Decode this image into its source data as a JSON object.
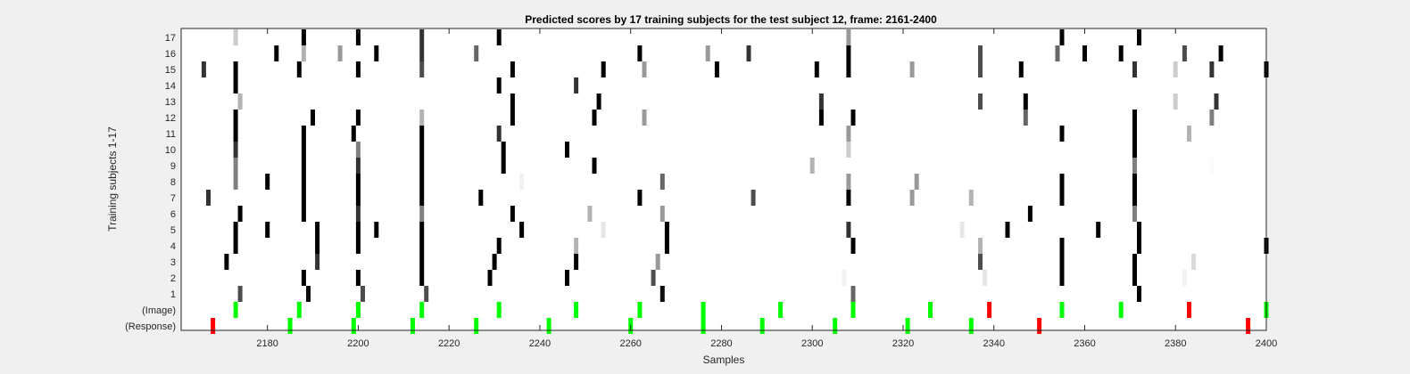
{
  "chart_data": {
    "type": "heatmap",
    "title": "Predicted scores by 17 training subjects for the test subject 12, frame: 2161-2400",
    "xlabel": "Samples",
    "ylabel": "Training subjects 1-17",
    "xlim": [
      2161,
      2400
    ],
    "x_ticks": [
      "2180",
      "2200",
      "2220",
      "2240",
      "2260",
      "2280",
      "2300",
      "2320",
      "2340",
      "2360",
      "2380",
      "2400"
    ],
    "y_ticks": [
      "1",
      "2",
      "3",
      "4",
      "5",
      "6",
      "7",
      "8",
      "9",
      "10",
      "11",
      "12",
      "13",
      "14",
      "15",
      "16",
      "(Image)",
      "(Response)"
    ],
    "grid": false,
    "colormap": "gray (white = 0, black = 1)",
    "colors": {
      "green": "#00ff00",
      "red": "#ff0000",
      "background": "#f0f0f0"
    },
    "rows": [
      {
        "label": "1",
        "cells": [
          [
            2174,
            0.7
          ],
          [
            2189,
            0.95
          ],
          [
            2201,
            0.7
          ],
          [
            2215,
            0.7
          ],
          [
            2267,
            0.95
          ],
          [
            2309,
            0.6
          ],
          [
            2372,
            1
          ]
        ]
      },
      {
        "label": "2",
        "cells": [
          [
            2188,
            1
          ],
          [
            2200,
            1
          ],
          [
            2214,
            1
          ],
          [
            2229,
            1
          ],
          [
            2246,
            1
          ],
          [
            2265,
            0.7
          ],
          [
            2307,
            0.05
          ],
          [
            2338,
            0.1
          ],
          [
            2355,
            1
          ],
          [
            2371,
            1
          ],
          [
            2382,
            0.05
          ]
        ]
      },
      {
        "label": "3",
        "cells": [
          [
            2171,
            1
          ],
          [
            2191,
            0.8
          ],
          [
            2214,
            1
          ],
          [
            2230,
            1
          ],
          [
            2248,
            1
          ],
          [
            2266,
            0.4
          ],
          [
            2337,
            0.7
          ],
          [
            2355,
            1
          ],
          [
            2371,
            1
          ],
          [
            2384,
            0.15
          ]
        ]
      },
      {
        "label": "4",
        "cells": [
          [
            2173,
            1
          ],
          [
            2191,
            1
          ],
          [
            2200,
            1
          ],
          [
            2214,
            1
          ],
          [
            2231,
            1
          ],
          [
            2248,
            0.3
          ],
          [
            2268,
            1
          ],
          [
            2309,
            1
          ],
          [
            2337,
            0.3
          ],
          [
            2355,
            1
          ],
          [
            2372,
            1
          ],
          [
            2400,
            1
          ]
        ]
      },
      {
        "label": "5",
        "cells": [
          [
            2173,
            1
          ],
          [
            2180,
            1
          ],
          [
            2191,
            1
          ],
          [
            2200,
            1
          ],
          [
            2204,
            1
          ],
          [
            2214,
            1
          ],
          [
            2236,
            1
          ],
          [
            2254,
            0.1
          ],
          [
            2268,
            1
          ],
          [
            2308,
            0.8
          ],
          [
            2333,
            0.1
          ],
          [
            2343,
            1
          ],
          [
            2363,
            1
          ],
          [
            2372,
            1
          ]
        ]
      },
      {
        "label": "6",
        "cells": [
          [
            2174,
            1
          ],
          [
            2188,
            1
          ],
          [
            2200,
            0.8
          ],
          [
            2214,
            0.5
          ],
          [
            2234,
            1
          ],
          [
            2251,
            0.3
          ],
          [
            2267,
            0.4
          ],
          [
            2348,
            1
          ],
          [
            2371,
            0.5
          ]
        ]
      },
      {
        "label": "7",
        "cells": [
          [
            2167,
            0.8
          ],
          [
            2188,
            1
          ],
          [
            2200,
            1
          ],
          [
            2214,
            1
          ],
          [
            2227,
            1
          ],
          [
            2262,
            1
          ],
          [
            2287,
            0.7
          ],
          [
            2308,
            1
          ],
          [
            2322,
            0.4
          ],
          [
            2335,
            0.3
          ],
          [
            2355,
            1
          ],
          [
            2371,
            1
          ]
        ]
      },
      {
        "label": "8",
        "cells": [
          [
            2173,
            0.5
          ],
          [
            2180,
            1
          ],
          [
            2188,
            1
          ],
          [
            2200,
            1
          ],
          [
            2214,
            1
          ],
          [
            2236,
            0.05
          ],
          [
            2267,
            0.6
          ],
          [
            2308,
            0.4
          ],
          [
            2323,
            0.4
          ],
          [
            2355,
            1
          ],
          [
            2371,
            1
          ]
        ]
      },
      {
        "label": "9",
        "cells": [
          [
            2173,
            0.5
          ],
          [
            2188,
            1
          ],
          [
            2200,
            0.8
          ],
          [
            2214,
            1
          ],
          [
            2232,
            1
          ],
          [
            2252,
            1
          ],
          [
            2300,
            0.3
          ],
          [
            2371,
            0.5
          ],
          [
            2388,
            0.02
          ]
        ]
      },
      {
        "label": "10",
        "cells": [
          [
            2173,
            0.8
          ],
          [
            2188,
            1
          ],
          [
            2200,
            0.5
          ],
          [
            2214,
            1
          ],
          [
            2232,
            1
          ],
          [
            2246,
            1
          ],
          [
            2308,
            0.2
          ],
          [
            2371,
            1
          ]
        ]
      },
      {
        "label": "11",
        "cells": [
          [
            2173,
            1
          ],
          [
            2188,
            1
          ],
          [
            2199,
            1
          ],
          [
            2214,
            1
          ],
          [
            2231,
            0.8
          ],
          [
            2308,
            0.4
          ],
          [
            2355,
            1
          ],
          [
            2371,
            1
          ],
          [
            2383,
            0.3
          ]
        ]
      },
      {
        "label": "12",
        "cells": [
          [
            2173,
            1
          ],
          [
            2190,
            1
          ],
          [
            2200,
            1
          ],
          [
            2214,
            0.3
          ],
          [
            2234,
            1
          ],
          [
            2252,
            1
          ],
          [
            2263,
            0.4
          ],
          [
            2302,
            1
          ],
          [
            2309,
            1
          ],
          [
            2347,
            0.6
          ],
          [
            2371,
            1
          ],
          [
            2388,
            0.5
          ]
        ]
      },
      {
        "label": "13",
        "cells": [
          [
            2174,
            0.3
          ],
          [
            2234,
            1
          ],
          [
            2253,
            1
          ],
          [
            2302,
            0.8
          ],
          [
            2337,
            0.7
          ],
          [
            2347,
            1
          ],
          [
            2380,
            0.2
          ],
          [
            2389,
            0.8
          ]
        ]
      },
      {
        "label": "14",
        "cells": [
          [
            2173,
            1
          ],
          [
            2231,
            1
          ],
          [
            2248,
            0.8
          ]
        ]
      },
      {
        "label": "15",
        "cells": [
          [
            2166,
            0.8
          ],
          [
            2173,
            1
          ],
          [
            2187,
            1
          ],
          [
            2200,
            1
          ],
          [
            2214,
            0.7
          ],
          [
            2234,
            1
          ],
          [
            2254,
            1
          ],
          [
            2263,
            0.4
          ],
          [
            2279,
            1
          ],
          [
            2301,
            1
          ],
          [
            2308,
            1
          ],
          [
            2322,
            0.4
          ],
          [
            2337,
            0.7
          ],
          [
            2346,
            1
          ],
          [
            2371,
            0.8
          ],
          [
            2380,
            0.2
          ],
          [
            2388,
            0.8
          ],
          [
            2400,
            1
          ]
        ]
      },
      {
        "label": "16",
        "cells": [
          [
            2182,
            1
          ],
          [
            2188,
            0.3
          ],
          [
            2196,
            0.4
          ],
          [
            2204,
            1
          ],
          [
            2214,
            0.8
          ],
          [
            2226,
            0.6
          ],
          [
            2262,
            1
          ],
          [
            2277,
            0.4
          ],
          [
            2286,
            0.8
          ],
          [
            2308,
            1
          ],
          [
            2337,
            0.7
          ],
          [
            2354,
            0.6
          ],
          [
            2360,
            1
          ],
          [
            2368,
            1
          ],
          [
            2382,
            0.7
          ],
          [
            2390,
            1
          ]
        ]
      },
      {
        "label": "17",
        "cells": [
          [
            2173,
            0.2
          ],
          [
            2188,
            1
          ],
          [
            2200,
            1
          ],
          [
            2214,
            0.8
          ],
          [
            2231,
            1
          ],
          [
            2308,
            0.4
          ],
          [
            2355,
            1
          ],
          [
            2372,
            1
          ]
        ]
      }
    ],
    "image_row": {
      "label": "(Image)",
      "green": [
        2173,
        2187,
        2200,
        2214,
        2231,
        2248,
        2262,
        2276,
        2293,
        2309,
        2326,
        2355,
        2368,
        2400
      ],
      "red": [
        2339,
        2383
      ]
    },
    "response_row": {
      "label": "(Response)",
      "green": [
        2185,
        2199,
        2212,
        2226,
        2242,
        2260,
        2276,
        2289,
        2305,
        2321,
        2335
      ],
      "red": [
        2168,
        2350,
        2396
      ]
    }
  }
}
